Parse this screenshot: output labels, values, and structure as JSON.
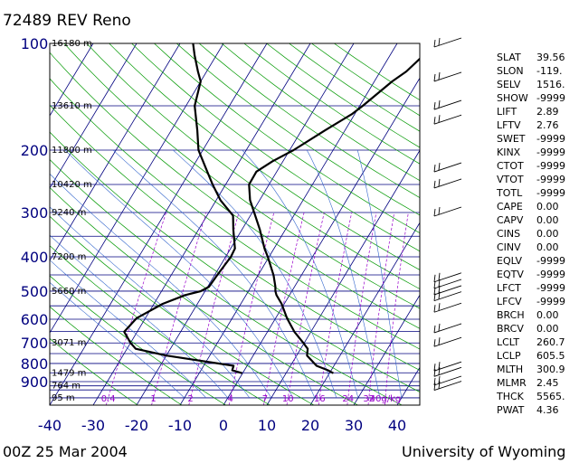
{
  "header": {
    "title": "72489 REV Reno"
  },
  "footer": {
    "time": "00Z 25 Mar 2004",
    "source": "University of Wyoming"
  },
  "chart_data": {
    "type": "line",
    "title": "72489 REV Reno",
    "y_axis": {
      "name": "pressure",
      "ticks": [
        100,
        200,
        300,
        400,
        500,
        600,
        700,
        800,
        900
      ],
      "scale": "log",
      "range": [
        1050,
        100
      ]
    },
    "x_axis": {
      "name": "temperature",
      "ticks": [
        -40,
        -30,
        -20,
        -10,
        0,
        10,
        20,
        30,
        40
      ],
      "range": [
        -40,
        45
      ]
    },
    "height_labels": [
      {
        "p": 100,
        "text": "16180 m"
      },
      {
        "p": 150,
        "text": "13610 m"
      },
      {
        "p": 200,
        "text": "11800 m"
      },
      {
        "p": 250,
        "text": "10420 m"
      },
      {
        "p": 300,
        "text": "9240 m"
      },
      {
        "p": 400,
        "text": "7200 m"
      },
      {
        "p": 500,
        "text": "5660 m"
      },
      {
        "p": 700,
        "text": "3071 m"
      },
      {
        "p": 850,
        "text": "1479 m"
      },
      {
        "p": 925,
        "text": "764 m"
      },
      {
        "p": 1000,
        "text": "95 m"
      }
    ],
    "mixing_ratio_labels": [
      "0.4",
      "1",
      "2",
      "4",
      "7",
      "10",
      "16",
      "24",
      "32",
      "40g/kg"
    ],
    "series": [
      {
        "key": "temperature",
        "points": [
          [
            852,
            20.9
          ],
          [
            836,
            19.2
          ],
          [
            812,
            16.0
          ],
          [
            760,
            12.4
          ],
          [
            727,
            11.6
          ],
          [
            700,
            9.8
          ],
          [
            651,
            6.2
          ],
          [
            596,
            2.6
          ],
          [
            543,
            -0.6
          ],
          [
            513,
            -3.0
          ],
          [
            500,
            -3.8
          ],
          [
            486,
            -4.4
          ],
          [
            451,
            -6.4
          ],
          [
            400,
            -10.3
          ],
          [
            379,
            -12.2
          ],
          [
            335,
            -15.9
          ],
          [
            306,
            -18.9
          ],
          [
            277,
            -22.2
          ],
          [
            250,
            -24.6
          ],
          [
            230,
            -24.7
          ],
          [
            215,
            -22.4
          ],
          [
            200,
            -19.1
          ],
          [
            176,
            -14.6
          ],
          [
            158,
            -10.6
          ],
          [
            150,
            -9.3
          ],
          [
            128,
            -5.9
          ],
          [
            120,
            -4.0
          ],
          [
            108,
            -2.3
          ],
          [
            100,
            -1.8
          ]
        ]
      },
      {
        "key": "dewpoint",
        "points": [
          [
            852,
            -0.1
          ],
          [
            836,
            -2.8
          ],
          [
            812,
            -3.1
          ],
          [
            760,
            -20.0
          ],
          [
            727,
            -28.0
          ],
          [
            700,
            -30.0
          ],
          [
            651,
            -33.0
          ],
          [
            596,
            -32.0
          ],
          [
            543,
            -28.0
          ],
          [
            513,
            -24.0
          ],
          [
            500,
            -21.0
          ],
          [
            486,
            -19.7
          ],
          [
            451,
            -19.4
          ],
          [
            400,
            -18.8
          ],
          [
            379,
            -19.0
          ],
          [
            335,
            -22.0
          ],
          [
            306,
            -24.0
          ],
          [
            277,
            -29.0
          ],
          [
            250,
            -33.0
          ],
          [
            230,
            -36.0
          ],
          [
            200,
            -41.0
          ],
          [
            176,
            -44.0
          ],
          [
            150,
            -48.0
          ],
          [
            128,
            -50.0
          ],
          [
            120,
            -52.0
          ],
          [
            108,
            -55.0
          ],
          [
            100,
            -57.0
          ]
        ]
      }
    ],
    "wind_barb_levels": [
      100,
      125,
      150,
      165,
      225,
      250,
      300,
      460,
      480,
      500,
      520,
      560,
      640,
      700,
      820,
      850,
      900,
      930
    ]
  },
  "indices": [
    {
      "name": "SLAT",
      "value": "39.56"
    },
    {
      "name": "SLON",
      "value": "-119."
    },
    {
      "name": "SELV",
      "value": "1516."
    },
    {
      "name": "SHOW",
      "value": "-9999"
    },
    {
      "name": "LIFT",
      "value": "2.89"
    },
    {
      "name": "LFTV",
      "value": "2.76"
    },
    {
      "name": "SWET",
      "value": "-9999"
    },
    {
      "name": "KINX",
      "value": "-9999"
    },
    {
      "name": "CTOT",
      "value": "-9999"
    },
    {
      "name": "VTOT",
      "value": "-9999"
    },
    {
      "name": "TOTL",
      "value": "-9999"
    },
    {
      "name": "CAPE",
      "value": "0.00"
    },
    {
      "name": "CAPV",
      "value": "0.00"
    },
    {
      "name": "CINS",
      "value": "0.00"
    },
    {
      "name": "CINV",
      "value": "0.00"
    },
    {
      "name": "EQLV",
      "value": "-9999"
    },
    {
      "name": "EQTV",
      "value": "-9999"
    },
    {
      "name": "LFCT",
      "value": "-9999"
    },
    {
      "name": "LFCV",
      "value": "-9999"
    },
    {
      "name": "BRCH",
      "value": "0.00"
    },
    {
      "name": "BRCV",
      "value": "0.00"
    },
    {
      "name": "LCLT",
      "value": "260.7"
    },
    {
      "name": "LCLP",
      "value": "605.5"
    },
    {
      "name": "MLTH",
      "value": "300.9"
    },
    {
      "name": "MLMR",
      "value": "2.45"
    },
    {
      "name": "THCK",
      "value": "5565."
    },
    {
      "name": "PWAT",
      "value": "4.36"
    }
  ]
}
